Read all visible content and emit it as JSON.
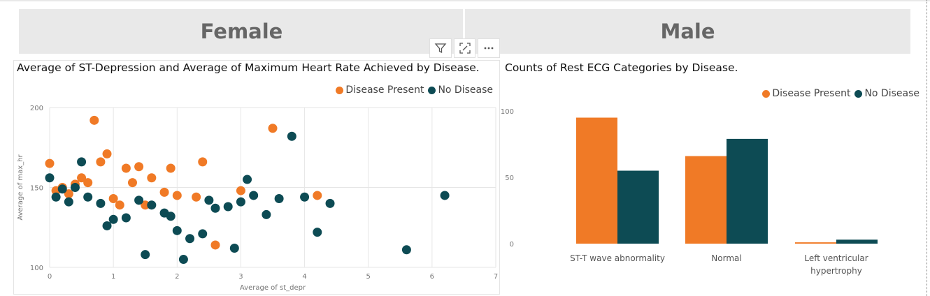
{
  "headers": {
    "female": "Female",
    "male": "Male"
  },
  "colors": {
    "disease_present": "#F07A26",
    "no_disease": "#0D4B54",
    "header_bg": "#E9E9E9",
    "header_text": "#666666",
    "grid": "#E6E6E6",
    "axis_text": "#777777"
  },
  "visual_header": {
    "icons": [
      "filter-icon",
      "focus-mode-icon",
      "more-options-icon"
    ]
  },
  "chart_data": [
    {
      "type": "scatter",
      "title": "Average of ST-Depression and Average of Maximum Heart Rate Achieved by Disease.",
      "xlabel": "Average of st_depr",
      "ylabel": "Average of max_hr",
      "xlim": [
        0,
        7
      ],
      "ylim": [
        100,
        200
      ],
      "xticks": [
        "0",
        "1",
        "2",
        "3",
        "4",
        "5",
        "6",
        "7"
      ],
      "yticks": [
        "100",
        "150",
        "200"
      ],
      "legend_position": "top-right",
      "series": [
        {
          "name": "Disease Present",
          "points": [
            [
              0,
              165
            ],
            [
              0.1,
              148
            ],
            [
              0.2,
              150
            ],
            [
              0.3,
              146
            ],
            [
              0.4,
              152
            ],
            [
              0.5,
              156
            ],
            [
              0.6,
              153
            ],
            [
              0.7,
              192
            ],
            [
              0.8,
              166
            ],
            [
              0.9,
              171
            ],
            [
              1.0,
              143
            ],
            [
              1.1,
              139
            ],
            [
              1.2,
              162
            ],
            [
              1.3,
              153
            ],
            [
              1.4,
              163
            ],
            [
              1.5,
              139
            ],
            [
              1.6,
              156
            ],
            [
              1.8,
              147
            ],
            [
              1.9,
              162
            ],
            [
              2.0,
              145
            ],
            [
              2.3,
              144
            ],
            [
              2.4,
              166
            ],
            [
              2.6,
              114
            ],
            [
              3.0,
              148
            ],
            [
              3.5,
              187
            ],
            [
              4.2,
              145
            ]
          ]
        },
        {
          "name": "No Disease",
          "points": [
            [
              0,
              156
            ],
            [
              0.1,
              144
            ],
            [
              0.2,
              149
            ],
            [
              0.3,
              141
            ],
            [
              0.4,
              150
            ],
            [
              0.5,
              166
            ],
            [
              0.6,
              144
            ],
            [
              0.8,
              140
            ],
            [
              0.9,
              126
            ],
            [
              1.0,
              130
            ],
            [
              1.2,
              131
            ],
            [
              1.4,
              142
            ],
            [
              1.5,
              108
            ],
            [
              1.6,
              139
            ],
            [
              1.8,
              134
            ],
            [
              1.9,
              132
            ],
            [
              2.0,
              123
            ],
            [
              2.1,
              105
            ],
            [
              2.2,
              118
            ],
            [
              2.4,
              121
            ],
            [
              2.5,
              142
            ],
            [
              2.6,
              137
            ],
            [
              2.8,
              138
            ],
            [
              2.9,
              112
            ],
            [
              3.0,
              141
            ],
            [
              3.1,
              155
            ],
            [
              3.2,
              145
            ],
            [
              3.4,
              133
            ],
            [
              3.6,
              143
            ],
            [
              3.8,
              182
            ],
            [
              4.0,
              144
            ],
            [
              4.2,
              122
            ],
            [
              4.4,
              140
            ],
            [
              5.6,
              111
            ],
            [
              6.2,
              145
            ]
          ]
        }
      ]
    },
    {
      "type": "bar",
      "title": "Counts of Rest ECG Categories by Disease.",
      "categories": [
        "ST-T wave abnormality",
        "Normal",
        "Left ventricular hypertrophy"
      ],
      "ylim": [
        0,
        100
      ],
      "yticks": [
        "0",
        "50",
        "100"
      ],
      "legend_position": "top-right",
      "series": [
        {
          "name": "Disease Present",
          "values": [
            95,
            66,
            1
          ]
        },
        {
          "name": "No Disease",
          "values": [
            55,
            79,
            3
          ]
        }
      ]
    }
  ]
}
